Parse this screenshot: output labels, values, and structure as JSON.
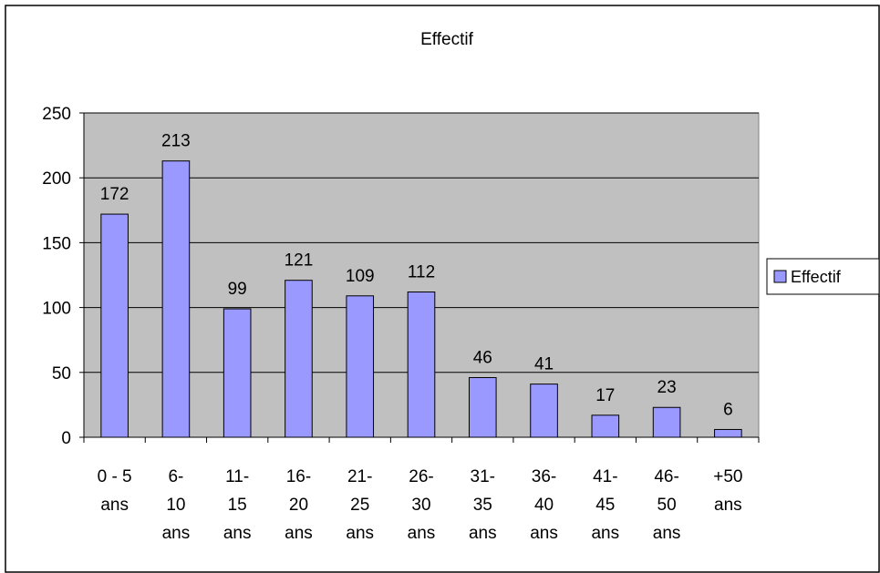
{
  "chart_data": {
    "type": "bar",
    "title": "Effectif",
    "categories": [
      [
        "0 - 5",
        "ans"
      ],
      [
        "6-",
        "10",
        "ans"
      ],
      [
        "11-",
        "15",
        "ans"
      ],
      [
        "16-",
        "20",
        "ans"
      ],
      [
        "21-",
        "25",
        "ans"
      ],
      [
        "26-",
        "30",
        "ans"
      ],
      [
        "31-",
        "35",
        "ans"
      ],
      [
        "36-",
        "40",
        "ans"
      ],
      [
        "41-",
        "45",
        "ans"
      ],
      [
        "46-",
        "50",
        "ans"
      ],
      [
        "+50",
        "ans"
      ]
    ],
    "series": [
      {
        "name": "Effectif",
        "values": [
          172,
          213,
          99,
          121,
          109,
          112,
          46,
          41,
          17,
          23,
          6
        ]
      }
    ],
    "ylim": [
      0,
      250
    ],
    "yticks": [
      0,
      50,
      100,
      150,
      200,
      250
    ],
    "grid": true,
    "legend": "right",
    "colors": {
      "bar": "#9999ff",
      "plot_background": "#c0c0c0",
      "border": "#000000"
    }
  }
}
